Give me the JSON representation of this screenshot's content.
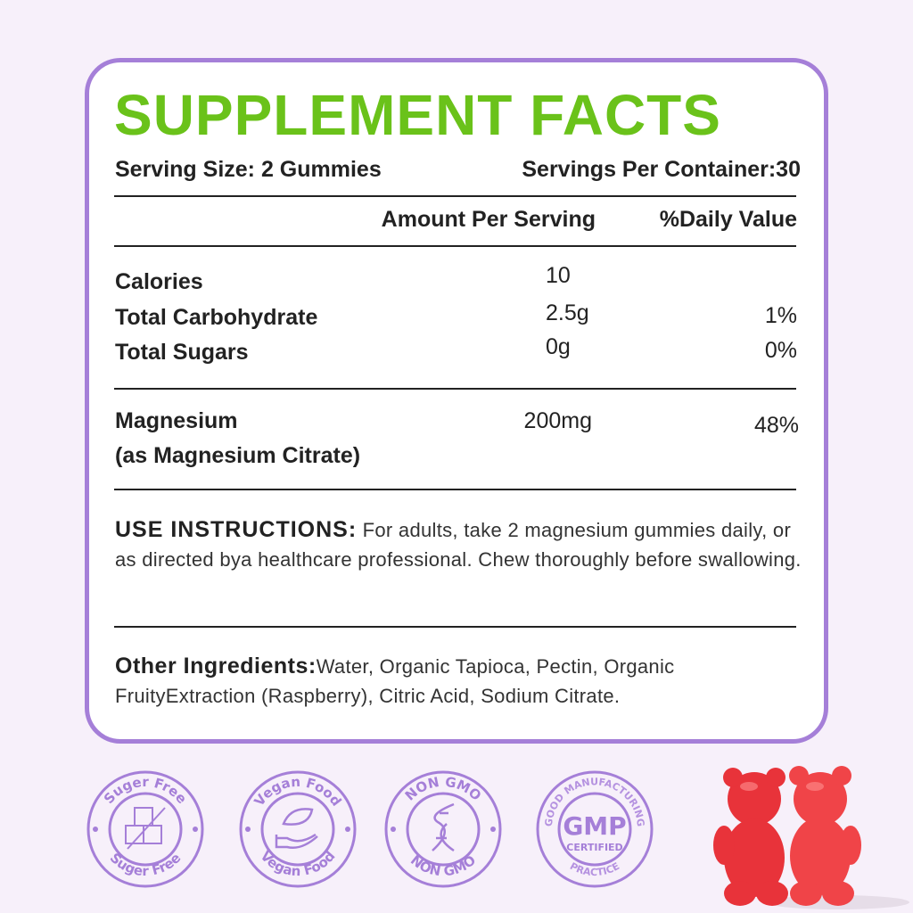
{
  "title": "SUPPLEMENT FACTS",
  "serving_size": "Serving Size: 2 Gummies",
  "servings_per_container": "Servings Per Container:30",
  "headers": {
    "amount": "Amount Per Serving",
    "dv": "%Daily Value"
  },
  "rows": [
    {
      "name": "Calories",
      "amount": "10",
      "dv": ""
    },
    {
      "name": "Total Carbohydrate",
      "amount": "2.5g",
      "dv": "1%"
    },
    {
      "name": "Total Sugars",
      "amount": "0g",
      "dv": "0%"
    }
  ],
  "magnesium": {
    "name": "Magnesium",
    "sub": "(as Magnesium Citrate)",
    "amount": "200mg",
    "dv": "48%"
  },
  "instructions": {
    "label": "USE INSTRUCTIONS:",
    "text": " For adults, take 2 magnesium gummies daily, or as directed bya healthcare professional. Chew thoroughly before swallowing."
  },
  "ingredients": {
    "label": "Other Ingredients:",
    "text": "Water, Organic Tapioca, Pectin, Organic FruityExtraction (Raspberry), Citric Acid, Sodium Citrate."
  },
  "badges": [
    {
      "top": "Suger Free",
      "bottom": "Suger Free",
      "icon": "sugar-cubes-icon"
    },
    {
      "top": "Vegan Food",
      "bottom": "Vegan Food",
      "icon": "leaf-hand-icon"
    },
    {
      "top": "NON GMO",
      "bottom": "NON GMO",
      "icon": "dna-icon"
    },
    {
      "top": "GOOD MANUFACTURING",
      "bottom": "PRACTICE",
      "center": "GMP",
      "center_sub": "CERTIFIED",
      "icon": "gmp-icon"
    }
  ],
  "colors": {
    "green": "#6ac21a",
    "purple": "#a57fd8",
    "bear": "#e8333a"
  }
}
